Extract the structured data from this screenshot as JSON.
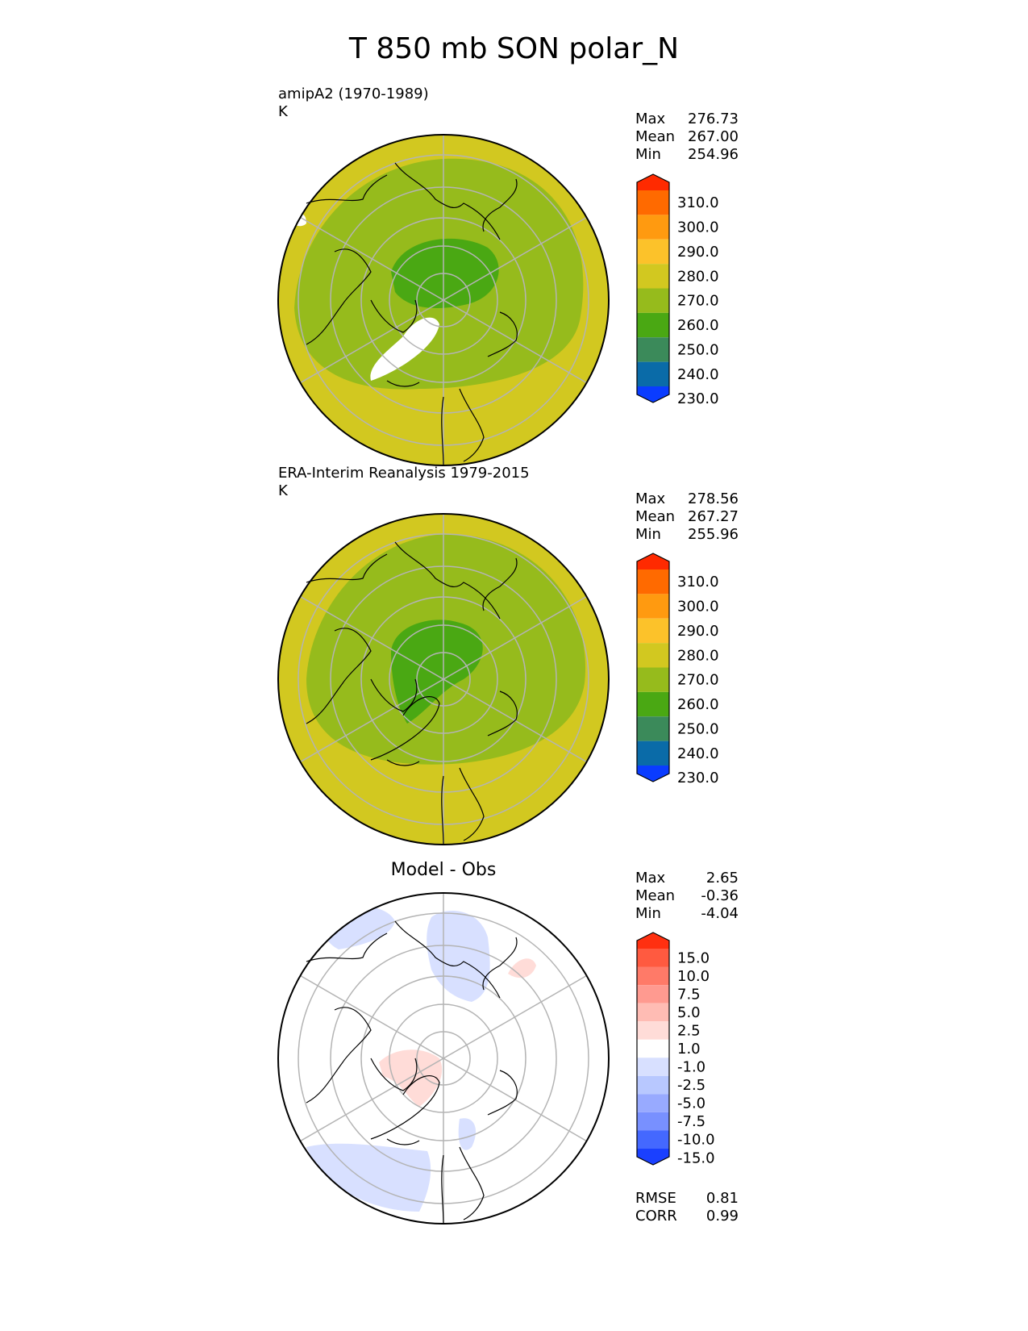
{
  "title": "T 850 mb SON polar_N",
  "panels": [
    {
      "id": "model",
      "title": "amipA2 (1970-1989)",
      "units": "K",
      "stats": [
        {
          "label": "Max",
          "value": "276.73"
        },
        {
          "label": "Mean",
          "value": "267.00"
        },
        {
          "label": "Min",
          "value": "254.96"
        }
      ]
    },
    {
      "id": "obs",
      "title": "ERA-Interim Reanalysis 1979-2015",
      "units": "K",
      "stats": [
        {
          "label": "Max",
          "value": "278.56"
        },
        {
          "label": "Mean",
          "value": "267.27"
        },
        {
          "label": "Min",
          "value": "255.96"
        }
      ]
    },
    {
      "id": "diff",
      "title": "Model - Obs",
      "stats": [
        {
          "label": "Max",
          "value": "2.65"
        },
        {
          "label": "Mean",
          "value": "-0.36"
        },
        {
          "label": "Min",
          "value": "-4.04"
        }
      ],
      "metrics": [
        {
          "label": "RMSE",
          "value": "0.81"
        },
        {
          "label": "CORR",
          "value": "0.99"
        }
      ]
    }
  ],
  "colorbars": {
    "absolute": {
      "labels": [
        "310.0",
        "300.0",
        "290.0",
        "280.0",
        "270.0",
        "260.0",
        "250.0",
        "240.0",
        "230.0"
      ],
      "colors": [
        "#ff2a00",
        "#ff6a00",
        "#ff9a10",
        "#fcc22a",
        "#d2c820",
        "#96bb1c",
        "#4aa813",
        "#3b8a5a",
        "#0a6ba8",
        "#0a3cff"
      ]
    },
    "difference": {
      "labels": [
        "15.0",
        "10.0",
        "7.5",
        "5.0",
        "2.5",
        "1.0",
        "-1.0",
        "-2.5",
        "-5.0",
        "-7.5",
        "-10.0",
        "-15.0"
      ],
      "colors": [
        "#ff3010",
        "#ff5a40",
        "#ff7a68",
        "#ff9a90",
        "#ffbcb4",
        "#ffdcd8",
        "#ffffff",
        "#d8e0ff",
        "#b8c8ff",
        "#98aaff",
        "#7890ff",
        "#4468ff",
        "#1a40ff"
      ]
    }
  }
}
